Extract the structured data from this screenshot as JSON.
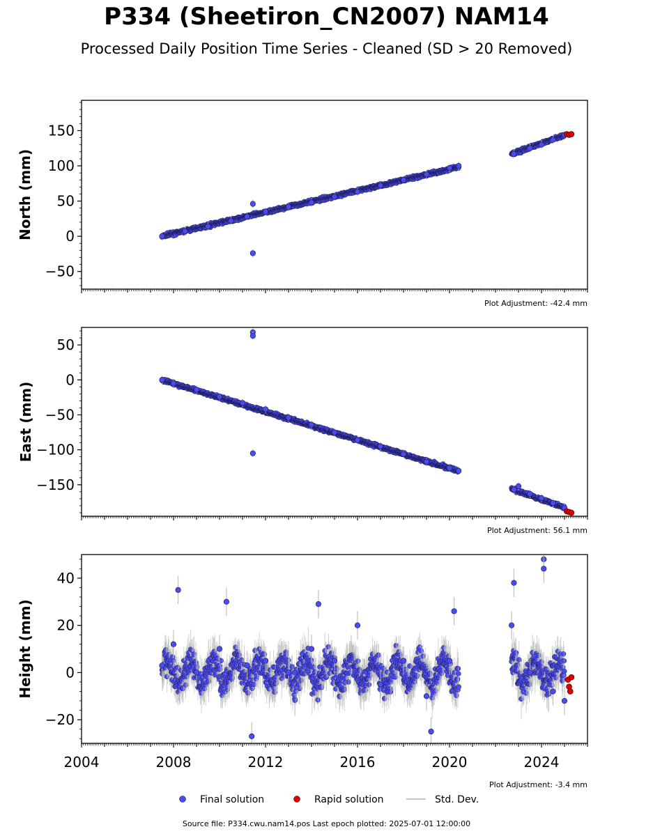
{
  "title": "P334 (Sheetiron_CN2007) NAM14",
  "subtitle": "Processed Daily Position Time Series - Cleaned (SD > 20 Removed)",
  "footer": "Source file: P334.cwu.nam14.pos  Last epoch plotted: 2025-07-01 12:00:00",
  "colors": {
    "final": "#4b4bf0",
    "rapid": "#e00000",
    "stddev": "#b4b4b4"
  },
  "legend": {
    "final": "Final solution",
    "rapid": "Rapid solution",
    "stddev": "Std. Dev."
  },
  "chart_data": [
    {
      "type": "scatter",
      "ylabel": "North (mm)",
      "adjustment": "Plot Adjustment: -42.4 mm",
      "xlim": [
        2004,
        2026
      ],
      "ylim": [
        -75,
        193
      ],
      "yticks": [
        -50,
        0,
        50,
        100,
        150
      ],
      "ytick_labels": [
        "−50",
        "0",
        "50",
        "100",
        "150"
      ],
      "final_series": [
        [
          2007.5,
          0
        ],
        [
          2008.5,
          7
        ],
        [
          2009.5,
          14
        ],
        [
          2010.5,
          22
        ],
        [
          2011.2,
          28
        ],
        [
          2011.45,
          46
        ],
        [
          2011.45,
          -24
        ],
        [
          2012.0,
          35
        ],
        [
          2013.0,
          42
        ],
        [
          2014.0,
          48
        ],
        [
          2015.0,
          56
        ],
        [
          2016.0,
          63
        ],
        [
          2017.0,
          72
        ],
        [
          2018.0,
          80
        ],
        [
          2019.0,
          88
        ],
        [
          2020.0,
          97
        ],
        [
          2020.4,
          100
        ],
        [
          2022.8,
          117
        ],
        [
          2023.5,
          125
        ],
        [
          2024.0,
          130
        ],
        [
          2024.5,
          137
        ],
        [
          2025.0,
          144
        ]
      ],
      "rapid_series": [
        [
          2025.1,
          145
        ],
        [
          2025.2,
          144
        ],
        [
          2025.3,
          145
        ]
      ]
    },
    {
      "type": "scatter",
      "ylabel": "East (mm)",
      "adjustment": "Plot Adjustment: 56.1 mm",
      "xlim": [
        2004,
        2026
      ],
      "ylim": [
        -195,
        75
      ],
      "yticks": [
        -150,
        -100,
        -50,
        0,
        50
      ],
      "ytick_labels": [
        "−150",
        "−100",
        "−50",
        "0",
        "50"
      ],
      "final_series": [
        [
          2007.5,
          0
        ],
        [
          2008.0,
          -5
        ],
        [
          2009.0,
          -14
        ],
        [
          2010.0,
          -24
        ],
        [
          2011.0,
          -33
        ],
        [
          2011.45,
          68
        ],
        [
          2011.45,
          63
        ],
        [
          2011.45,
          -105
        ],
        [
          2012.0,
          -42
        ],
        [
          2013.0,
          -54
        ],
        [
          2014.0,
          -64
        ],
        [
          2015.0,
          -75
        ],
        [
          2016.0,
          -86
        ],
        [
          2017.0,
          -95
        ],
        [
          2018.0,
          -106
        ],
        [
          2019.0,
          -117
        ],
        [
          2020.0,
          -126
        ],
        [
          2020.4,
          -130
        ],
        [
          2022.8,
          -157
        ],
        [
          2023.0,
          -152
        ],
        [
          2023.5,
          -163
        ],
        [
          2024.0,
          -169
        ],
        [
          2024.5,
          -176
        ],
        [
          2025.0,
          -183
        ]
      ],
      "rapid_series": [
        [
          2025.1,
          -188
        ],
        [
          2025.2,
          -189
        ],
        [
          2025.3,
          -190
        ]
      ]
    },
    {
      "type": "scatter",
      "ylabel": "Height (mm)",
      "adjustment": "Plot Adjustment: -3.4 mm",
      "xlim": [
        2004,
        2026
      ],
      "ylim": [
        -30,
        50
      ],
      "yticks": [
        -20,
        0,
        20,
        40
      ],
      "ytick_labels": [
        "−20",
        "0",
        "20",
        "40"
      ],
      "xticks": [
        2004,
        2008,
        2012,
        2016,
        2020,
        2024
      ],
      "xtick_labels": [
        "2004",
        "2008",
        "2012",
        "2016",
        "2020",
        "2024"
      ],
      "final_series": [
        [
          2007.5,
          3
        ],
        [
          2008.0,
          12
        ],
        [
          2008.2,
          35
        ],
        [
          2009.0,
          0
        ],
        [
          2010.0,
          10
        ],
        [
          2010.3,
          30
        ],
        [
          2011.2,
          3
        ],
        [
          2011.4,
          -27
        ],
        [
          2012.0,
          5
        ],
        [
          2013.0,
          0
        ],
        [
          2014.0,
          10
        ],
        [
          2014.3,
          29
        ],
        [
          2015.0,
          5
        ],
        [
          2016.0,
          20
        ],
        [
          2017.0,
          -5
        ],
        [
          2018.0,
          5
        ],
        [
          2019.0,
          -10
        ],
        [
          2019.2,
          -25
        ],
        [
          2020.0,
          5
        ],
        [
          2020.2,
          26
        ],
        [
          2022.7,
          20
        ],
        [
          2022.8,
          38
        ],
        [
          2023.5,
          0
        ],
        [
          2024.1,
          48
        ],
        [
          2024.1,
          44
        ],
        [
          2024.5,
          -8
        ],
        [
          2025.0,
          -12
        ]
      ],
      "rapid_series": [
        [
          2025.15,
          -3
        ],
        [
          2025.2,
          -6
        ],
        [
          2025.25,
          -8
        ],
        [
          2025.3,
          -2
        ]
      ]
    }
  ]
}
